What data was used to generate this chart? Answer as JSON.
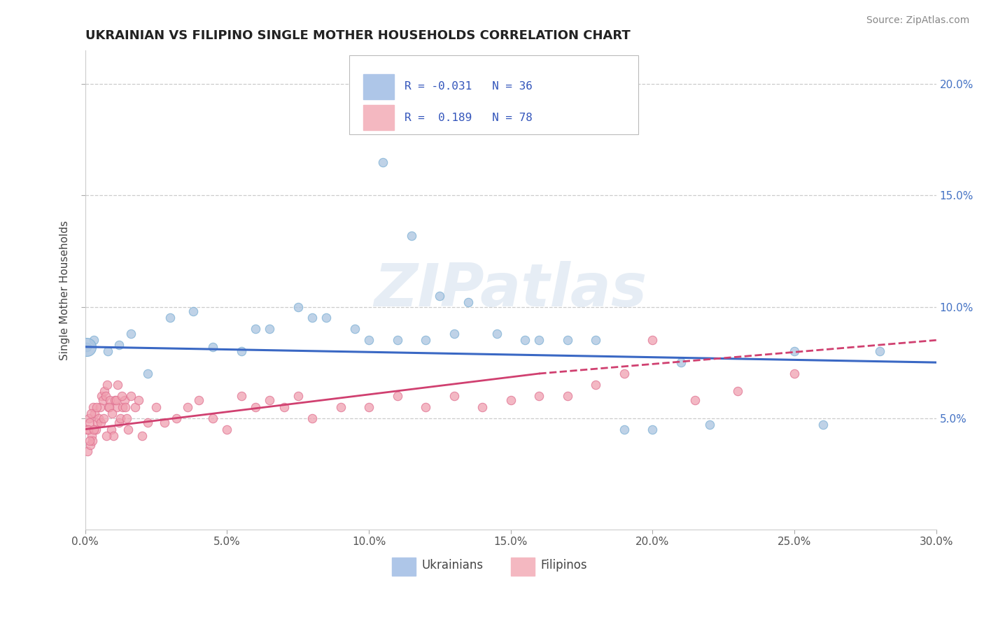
{
  "title": "UKRAINIAN VS FILIPINO SINGLE MOTHER HOUSEHOLDS CORRELATION CHART",
  "source": "Source: ZipAtlas.com",
  "ylabel": "Single Mother Households",
  "xlim": [
    0.0,
    30.0
  ],
  "ylim": [
    0.0,
    21.5
  ],
  "x_ticks": [
    0.0,
    5.0,
    10.0,
    15.0,
    20.0,
    25.0,
    30.0
  ],
  "y_ticks": [
    5.0,
    10.0,
    15.0,
    20.0
  ],
  "legend_labels": [
    "Ukrainians",
    "Filipinos"
  ],
  "watermark": "ZIPatlas",
  "blue_color": "#aac4e0",
  "pink_color": "#f0a0b0",
  "blue_edge_color": "#7bafd4",
  "pink_edge_color": "#e07090",
  "blue_line_color": "#3a68c4",
  "pink_line_color": "#d04070",
  "ukrainian_scatter": {
    "x": [
      0.05,
      0.3,
      0.8,
      1.2,
      1.6,
      2.2,
      3.0,
      3.8,
      4.5,
      5.5,
      6.5,
      7.5,
      8.5,
      9.5,
      10.5,
      11.5,
      12.5,
      13.5,
      14.5,
      15.5,
      17.0,
      19.0,
      21.0,
      25.0,
      28.0,
      12.0,
      13.0,
      16.0,
      18.0,
      20.0,
      22.0,
      26.0,
      10.0,
      11.0,
      8.0,
      6.0
    ],
    "y": [
      8.2,
      8.5,
      8.0,
      8.3,
      8.8,
      7.0,
      9.5,
      9.8,
      8.2,
      8.0,
      9.0,
      10.0,
      9.5,
      9.0,
      16.5,
      13.2,
      10.5,
      10.2,
      8.8,
      8.5,
      8.5,
      4.5,
      7.5,
      8.0,
      8.0,
      8.5,
      8.8,
      8.5,
      8.5,
      4.5,
      4.7,
      4.7,
      8.5,
      8.5,
      9.5,
      9.0
    ],
    "big_dot_x": 0.05,
    "big_dot_y": 8.2,
    "big_dot_size": 350
  },
  "filipino_scatter": {
    "x": [
      0.05,
      0.08,
      0.12,
      0.15,
      0.18,
      0.22,
      0.25,
      0.28,
      0.32,
      0.38,
      0.42,
      0.48,
      0.52,
      0.58,
      0.62,
      0.68,
      0.72,
      0.78,
      0.82,
      0.88,
      0.92,
      0.98,
      1.05,
      1.12,
      1.18,
      1.25,
      1.32,
      1.38,
      1.45,
      1.52,
      1.62,
      1.75,
      1.88,
      2.0,
      2.2,
      2.5,
      2.8,
      3.2,
      3.6,
      4.0,
      4.5,
      5.0,
      5.5,
      6.0,
      6.5,
      7.0,
      7.5,
      8.0,
      9.0,
      10.0,
      11.0,
      12.0,
      13.0,
      14.0,
      15.0,
      16.0,
      17.0,
      18.0,
      19.0,
      20.0,
      21.5,
      23.0,
      25.0,
      0.1,
      0.14,
      0.2,
      0.3,
      0.4,
      0.55,
      0.65,
      0.75,
      0.85,
      0.95,
      1.08,
      1.15,
      1.28,
      1.42
    ],
    "y": [
      4.5,
      3.5,
      5.0,
      4.8,
      3.8,
      4.2,
      4.0,
      5.5,
      5.2,
      4.5,
      4.8,
      5.0,
      5.5,
      6.0,
      5.8,
      6.2,
      6.0,
      6.5,
      5.5,
      5.8,
      4.5,
      4.2,
      5.8,
      5.5,
      4.8,
      5.0,
      5.5,
      5.8,
      5.0,
      4.5,
      6.0,
      5.5,
      5.8,
      4.2,
      4.8,
      5.5,
      4.8,
      5.0,
      5.5,
      5.8,
      5.0,
      4.5,
      6.0,
      5.5,
      5.8,
      5.5,
      6.0,
      5.0,
      5.5,
      5.5,
      6.0,
      5.5,
      6.0,
      5.5,
      5.8,
      6.0,
      6.0,
      6.5,
      7.0,
      8.5,
      5.8,
      6.2,
      7.0,
      4.5,
      4.0,
      5.2,
      4.5,
      5.5,
      4.8,
      5.0,
      4.2,
      5.5,
      5.2,
      5.8,
      6.5,
      6.0,
      5.5
    ]
  },
  "dot_size": 80
}
